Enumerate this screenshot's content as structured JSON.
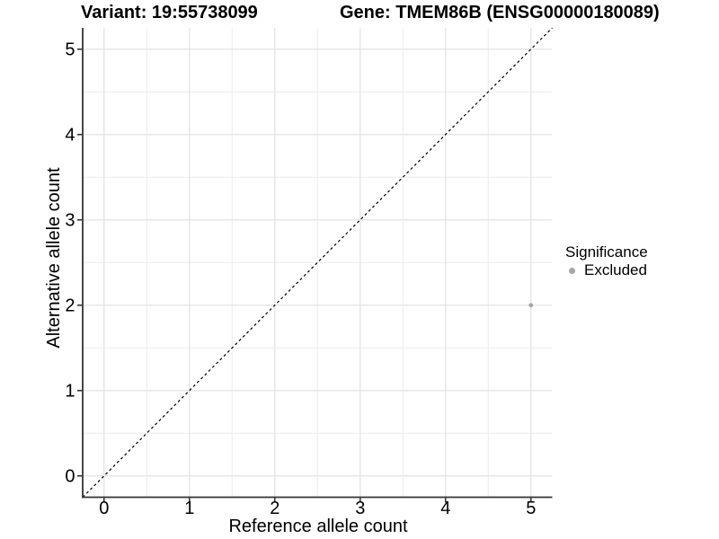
{
  "chart_data": {
    "type": "scatter",
    "title_left": "Variant: 19:55738099",
    "title_right": "Gene: TMEM86B (ENSG00000180089)",
    "xlabel": "Reference allele count",
    "ylabel": "Alternative allele count",
    "xlim": [
      -0.25,
      5.25
    ],
    "ylim": [
      -0.25,
      5.25
    ],
    "xticks": [
      0,
      1,
      2,
      3,
      4,
      5
    ],
    "yticks": [
      0,
      1,
      2,
      3,
      4,
      5
    ],
    "minor_gridlines_x": [
      0.5,
      1.5,
      2.5,
      3.5,
      4.5
    ],
    "minor_gridlines_y": [
      0.5,
      1.5,
      2.5,
      3.5,
      4.5
    ],
    "grid": "on",
    "reference_line": {
      "type": "identity",
      "from": [
        -0.25,
        -0.25
      ],
      "to": [
        5.25,
        5.25
      ],
      "style": "dashed",
      "color": "#000000"
    },
    "series": [
      {
        "name": "Excluded",
        "color": "#a6a6a6",
        "point_radius": 2.4,
        "points": [
          {
            "x": 5,
            "y": 2
          }
        ]
      }
    ],
    "legend": {
      "title": "Significance",
      "position": "right",
      "entries": [
        {
          "label": "Excluded",
          "color": "#a6a6a6"
        }
      ]
    }
  },
  "colors": {
    "background": "#ffffff",
    "axis_line": "#333333",
    "grid_major": "#e3e3e3",
    "grid_minor": "#ececec",
    "text": "#000000",
    "excluded_point": "#a6a6a6"
  }
}
